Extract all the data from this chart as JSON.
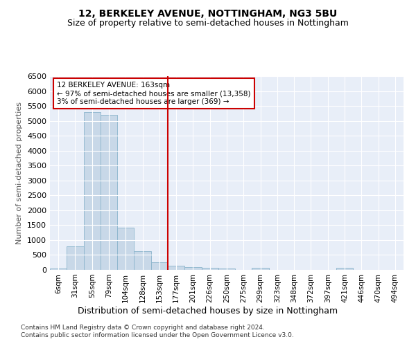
{
  "title": "12, BERKELEY AVENUE, NOTTINGHAM, NG3 5BU",
  "subtitle": "Size of property relative to semi-detached houses in Nottingham",
  "xlabel_bottom": "Distribution of semi-detached houses by size in Nottingham",
  "ylabel": "Number of semi-detached properties",
  "categories": [
    "6sqm",
    "31sqm",
    "55sqm",
    "79sqm",
    "104sqm",
    "128sqm",
    "153sqm",
    "177sqm",
    "201sqm",
    "226sqm",
    "250sqm",
    "275sqm",
    "299sqm",
    "323sqm",
    "348sqm",
    "372sqm",
    "397sqm",
    "421sqm",
    "446sqm",
    "470sqm",
    "494sqm"
  ],
  "values": [
    50,
    800,
    5300,
    5200,
    1420,
    630,
    260,
    130,
    95,
    70,
    50,
    0,
    70,
    0,
    0,
    0,
    0,
    70,
    0,
    0,
    0
  ],
  "bar_color": "#c8d8e8",
  "bar_edge_color": "#8ab4cc",
  "vline_color": "#cc0000",
  "vline_index": 6.5,
  "annotation_title": "12 BERKELEY AVENUE: 163sqm",
  "annotation_line1": "← 97% of semi-detached houses are smaller (13,358)",
  "annotation_line2": "3% of semi-detached houses are larger (369) →",
  "annotation_box_color": "#ffffff",
  "annotation_box_edge": "#cc0000",
  "ylim": [
    0,
    6500
  ],
  "yticks": [
    0,
    500,
    1000,
    1500,
    2000,
    2500,
    3000,
    3500,
    4000,
    4500,
    5000,
    5500,
    6000,
    6500
  ],
  "background_color": "#e8eef8",
  "footer1": "Contains HM Land Registry data © Crown copyright and database right 2024.",
  "footer2": "Contains public sector information licensed under the Open Government Licence v3.0.",
  "title_fontsize": 10,
  "subtitle_fontsize": 9,
  "ylabel_fontsize": 8,
  "xlabel_fontsize": 9,
  "tick_fontsize": 7.5,
  "ytick_fontsize": 8,
  "footer_fontsize": 6.5
}
